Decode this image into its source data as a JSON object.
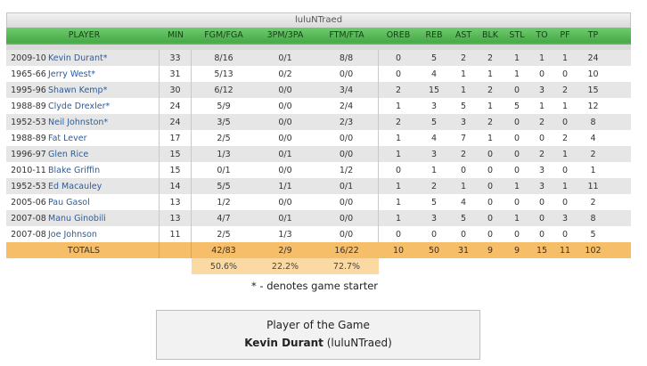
{
  "team_name": "luluNTraed",
  "columns": [
    "PLAYER",
    "MIN",
    "FGM/FGA",
    "3PM/3PA",
    "FTM/FTA",
    "OREB",
    "REB",
    "AST",
    "BLK",
    "STL",
    "TO",
    "PF",
    "TP"
  ],
  "rows": [
    {
      "season": "2009-10",
      "player": "Kevin Durant*",
      "min": "33",
      "fg": "8/16",
      "tp3": "0/1",
      "ft": "8/8",
      "oreb": "0",
      "reb": "5",
      "ast": "2",
      "blk": "2",
      "stl": "1",
      "to": "1",
      "pf": "1",
      "pts": "24"
    },
    {
      "season": "1965-66",
      "player": "Jerry West*",
      "min": "31",
      "fg": "5/13",
      "tp3": "0/2",
      "ft": "0/0",
      "oreb": "0",
      "reb": "4",
      "ast": "1",
      "blk": "1",
      "stl": "1",
      "to": "0",
      "pf": "0",
      "pts": "10"
    },
    {
      "season": "1995-96",
      "player": "Shawn Kemp*",
      "min": "30",
      "fg": "6/12",
      "tp3": "0/0",
      "ft": "3/4",
      "oreb": "2",
      "reb": "15",
      "ast": "1",
      "blk": "2",
      "stl": "0",
      "to": "3",
      "pf": "2",
      "pts": "15"
    },
    {
      "season": "1988-89",
      "player": "Clyde Drexler*",
      "min": "24",
      "fg": "5/9",
      "tp3": "0/0",
      "ft": "2/4",
      "oreb": "1",
      "reb": "3",
      "ast": "5",
      "blk": "1",
      "stl": "5",
      "to": "1",
      "pf": "1",
      "pts": "12"
    },
    {
      "season": "1952-53",
      "player": "Neil Johnston*",
      "min": "24",
      "fg": "3/5",
      "tp3": "0/0",
      "ft": "2/3",
      "oreb": "2",
      "reb": "5",
      "ast": "3",
      "blk": "2",
      "stl": "0",
      "to": "2",
      "pf": "0",
      "pts": "8"
    },
    {
      "season": "1988-89",
      "player": "Fat Lever",
      "min": "17",
      "fg": "2/5",
      "tp3": "0/0",
      "ft": "0/0",
      "oreb": "1",
      "reb": "4",
      "ast": "7",
      "blk": "1",
      "stl": "0",
      "to": "0",
      "pf": "2",
      "pts": "4"
    },
    {
      "season": "1996-97",
      "player": "Glen Rice",
      "min": "15",
      "fg": "1/3",
      "tp3": "0/1",
      "ft": "0/0",
      "oreb": "1",
      "reb": "3",
      "ast": "2",
      "blk": "0",
      "stl": "0",
      "to": "2",
      "pf": "1",
      "pts": "2"
    },
    {
      "season": "2010-11",
      "player": "Blake Griffin",
      "min": "15",
      "fg": "0/1",
      "tp3": "0/0",
      "ft": "1/2",
      "oreb": "0",
      "reb": "1",
      "ast": "0",
      "blk": "0",
      "stl": "0",
      "to": "3",
      "pf": "0",
      "pts": "1"
    },
    {
      "season": "1952-53",
      "player": "Ed Macauley",
      "min": "14",
      "fg": "5/5",
      "tp3": "1/1",
      "ft": "0/1",
      "oreb": "1",
      "reb": "2",
      "ast": "1",
      "blk": "0",
      "stl": "1",
      "to": "3",
      "pf": "1",
      "pts": "11"
    },
    {
      "season": "2005-06",
      "player": "Pau Gasol",
      "min": "13",
      "fg": "1/2",
      "tp3": "0/0",
      "ft": "0/0",
      "oreb": "1",
      "reb": "5",
      "ast": "4",
      "blk": "0",
      "stl": "0",
      "to": "0",
      "pf": "0",
      "pts": "2"
    },
    {
      "season": "2007-08",
      "player": "Manu Ginobili",
      "min": "13",
      "fg": "4/7",
      "tp3": "0/1",
      "ft": "0/0",
      "oreb": "1",
      "reb": "3",
      "ast": "5",
      "blk": "0",
      "stl": "1",
      "to": "0",
      "pf": "3",
      "pts": "8"
    },
    {
      "season": "2007-08",
      "player": "Joe Johnson",
      "min": "11",
      "fg": "2/5",
      "tp3": "1/3",
      "ft": "0/0",
      "oreb": "0",
      "reb": "0",
      "ast": "0",
      "blk": "0",
      "stl": "0",
      "to": "0",
      "pf": "0",
      "pts": "5"
    }
  ],
  "totals": {
    "label": "TOTALS",
    "min": "",
    "fg": "42/83",
    "tp3": "2/9",
    "ft": "16/22",
    "oreb": "10",
    "reb": "50",
    "ast": "31",
    "blk": "9",
    "stl": "9",
    "to": "15",
    "pf": "11",
    "pts": "102"
  },
  "percentages": {
    "fg": "50.6%",
    "tp3": "22.2%",
    "ft": "72.7%"
  },
  "starter_note": "* - denotes game starter",
  "player_of_game": {
    "heading": "Player of the Game",
    "player": "Kevin Durant",
    "team": "(luluNTraed)"
  }
}
